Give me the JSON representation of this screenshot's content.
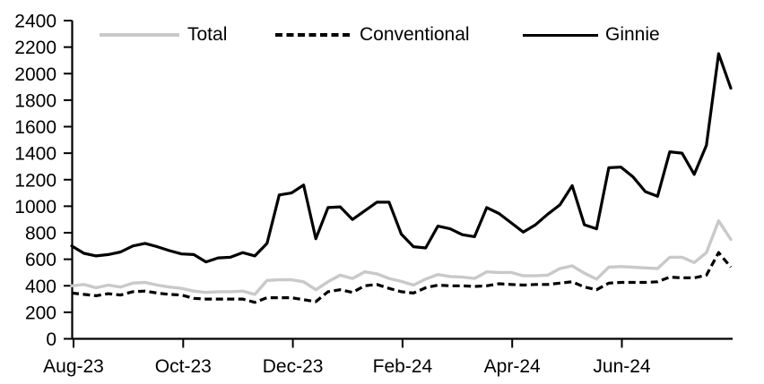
{
  "chart_data": {
    "type": "line",
    "title": "",
    "grid": false,
    "legend_position": "top",
    "ylim": [
      0,
      2400
    ],
    "y_ticks": [
      0,
      200,
      400,
      600,
      800,
      1000,
      1200,
      1400,
      1600,
      1800,
      2000,
      2200,
      2400
    ],
    "x_tick_labels": [
      "Aug-23",
      "Oct-23",
      "Dec-23",
      "Feb-24",
      "Apr-24",
      "Jun-24"
    ],
    "x_range": [
      "Aug-23",
      "Aug-24"
    ],
    "series": [
      {
        "name": "Total",
        "color": "#c9c9c9",
        "style": "solid",
        "values": [
          400,
          410,
          385,
          405,
          390,
          420,
          425,
          405,
          390,
          380,
          360,
          350,
          355,
          355,
          360,
          335,
          440,
          445,
          445,
          430,
          370,
          430,
          480,
          455,
          505,
          490,
          455,
          433,
          405,
          450,
          485,
          470,
          465,
          455,
          505,
          500,
          500,
          475,
          475,
          480,
          530,
          550,
          495,
          450,
          540,
          545,
          540,
          535,
          530,
          615,
          615,
          575,
          650,
          890,
          750
        ]
      },
      {
        "name": "Conventional",
        "color": "#000000",
        "style": "dashed",
        "values": [
          345,
          335,
          325,
          340,
          330,
          355,
          360,
          345,
          335,
          330,
          305,
          300,
          300,
          300,
          300,
          275,
          310,
          310,
          310,
          295,
          280,
          355,
          370,
          350,
          400,
          410,
          380,
          355,
          345,
          385,
          405,
          400,
          400,
          395,
          400,
          415,
          410,
          405,
          410,
          410,
          420,
          430,
          390,
          370,
          420,
          425,
          425,
          425,
          430,
          465,
          460,
          460,
          480,
          650,
          540
        ]
      },
      {
        "name": "Ginnie",
        "color": "#000000",
        "style": "solid",
        "values": [
          700,
          645,
          625,
          635,
          655,
          700,
          720,
          695,
          665,
          640,
          635,
          580,
          610,
          615,
          650,
          625,
          720,
          1085,
          1100,
          1160,
          755,
          990,
          995,
          900,
          965,
          1030,
          1030,
          790,
          695,
          685,
          850,
          830,
          785,
          770,
          990,
          945,
          875,
          805,
          860,
          940,
          1010,
          1155,
          860,
          830,
          1290,
          1295,
          1220,
          1110,
          1075,
          1410,
          1400,
          1240,
          1460,
          2150,
          1890
        ]
      }
    ]
  }
}
